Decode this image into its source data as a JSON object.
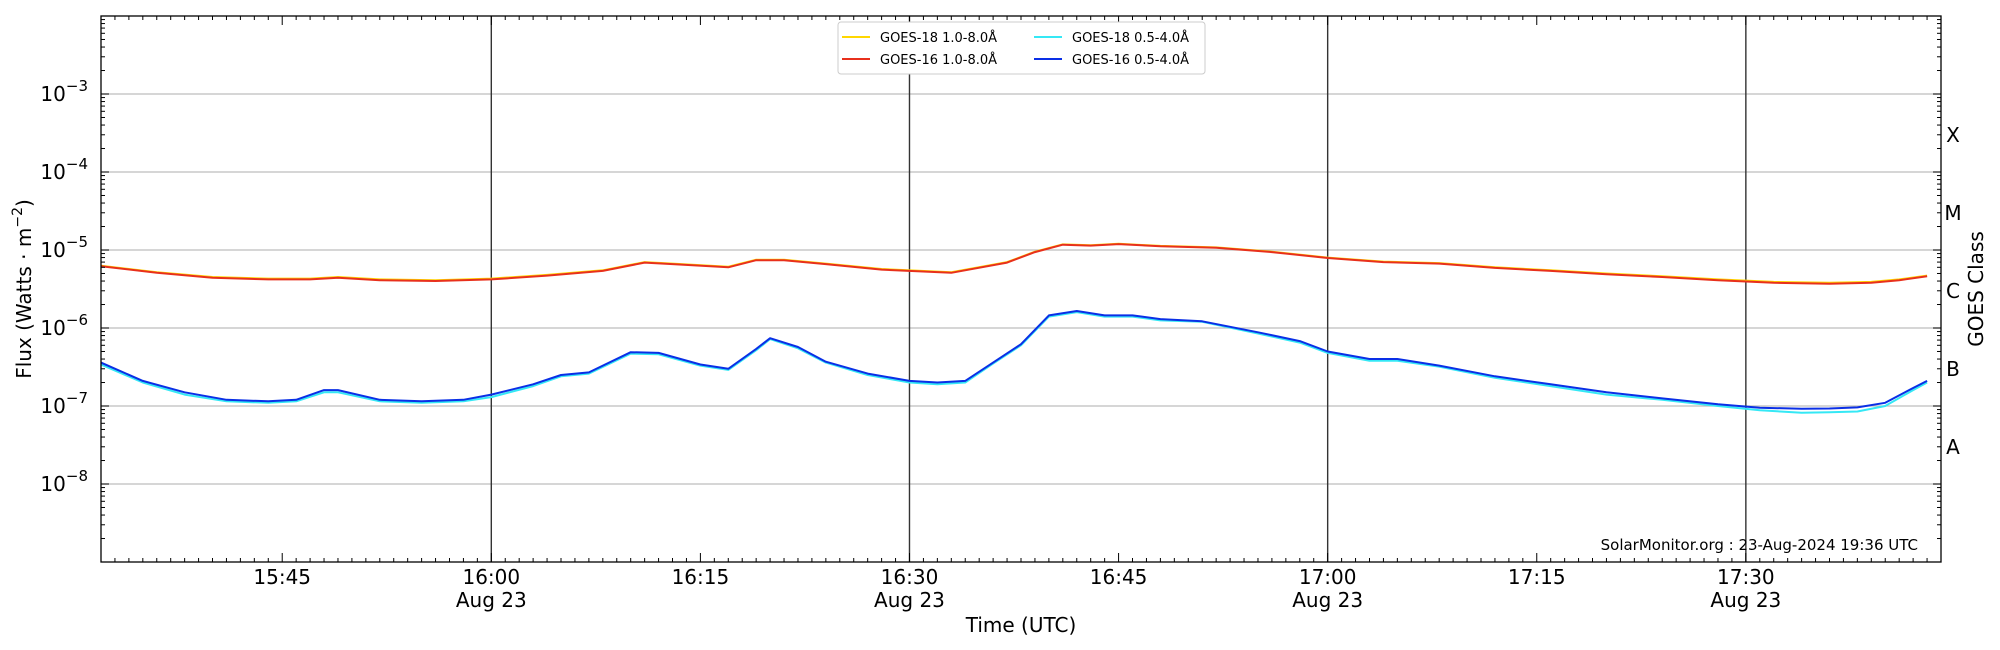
{
  "chart_data": {
    "type": "line",
    "title": "",
    "xlabel": "Time (UTC)",
    "ylabel": "Flux (Watts · m⁻²)",
    "ylabel_parts": {
      "base": "Flux (Watts · m",
      "exponent": "−2",
      "suffix": ")"
    },
    "right_ylabel": "GOES Class",
    "y_scale": "log",
    "ylim": [
      1e-09,
      0.01
    ],
    "xlim": [
      "2024-08-23 15:32",
      "2024-08-23 17:44"
    ],
    "y_ticks": [
      {
        "value": 1e-08,
        "base": "10",
        "exp": "−8"
      },
      {
        "value": 1e-07,
        "base": "10",
        "exp": "−7"
      },
      {
        "value": 1e-06,
        "base": "10",
        "exp": "−6"
      },
      {
        "value": 1e-05,
        "base": "10",
        "exp": "−5"
      },
      {
        "value": 0.0001,
        "base": "10",
        "exp": "−4"
      },
      {
        "value": 0.001,
        "base": "10",
        "exp": "−3"
      }
    ],
    "x_ticks": [
      {
        "time": "15:45",
        "line1": "15:45",
        "line2": ""
      },
      {
        "time": "16:00",
        "line1": "16:00",
        "line2": "Aug 23"
      },
      {
        "time": "16:15",
        "line1": "16:15",
        "line2": ""
      },
      {
        "time": "16:30",
        "line1": "16:30",
        "line2": "Aug 23"
      },
      {
        "time": "16:45",
        "line1": "16:45",
        "line2": ""
      },
      {
        "time": "17:00",
        "line1": "17:00",
        "line2": "Aug 23"
      },
      {
        "time": "17:15",
        "line1": "17:15",
        "line2": ""
      },
      {
        "time": "17:30",
        "line1": "17:30",
        "line2": "Aug 23"
      }
    ],
    "vertical_lines": [
      "16:00",
      "16:30",
      "17:00",
      "17:30"
    ],
    "goes_classes": [
      {
        "label": "A",
        "value": 3e-08
      },
      {
        "label": "B",
        "value": 3e-07
      },
      {
        "label": "C",
        "value": 3e-06
      },
      {
        "label": "M",
        "value": 3e-05
      },
      {
        "label": "X",
        "value": 0.0003
      }
    ],
    "grid": true,
    "legend_position": "top-center",
    "series": [
      {
        "name": "GOES-18 1.0-8.0Å",
        "color": "#ffd700",
        "x": [
          "15:32",
          "15:36",
          "15:40",
          "15:44",
          "15:47",
          "15:49",
          "15:52",
          "15:56",
          "16:00",
          "16:04",
          "16:08",
          "16:11",
          "16:13",
          "16:17",
          "16:19",
          "16:21",
          "16:24",
          "16:28",
          "16:33",
          "16:37",
          "16:39",
          "16:41",
          "16:43",
          "16:45",
          "16:48",
          "16:52",
          "16:56",
          "17:00",
          "17:04",
          "17:08",
          "17:12",
          "17:16",
          "17:20",
          "17:24",
          "17:28",
          "17:32",
          "17:36",
          "17:39",
          "17:41",
          "17:43"
        ],
        "values": [
          6.3e-06,
          5.2e-06,
          4.5e-06,
          4.3e-06,
          4.3e-06,
          4.5e-06,
          4.2e-06,
          4.1e-06,
          4.3e-06,
          4.8e-06,
          5.5e-06,
          7e-06,
          6.7e-06,
          6.1e-06,
          7.5e-06,
          7.5e-06,
          6.7e-06,
          5.7e-06,
          5.2e-06,
          7e-06,
          9.5e-06,
          1.18e-05,
          1.15e-05,
          1.2e-05,
          1.13e-05,
          1.08e-05,
          9.5e-06,
          8e-06,
          7.1e-06,
          6.8e-06,
          6e-06,
          5.5e-06,
          5e-06,
          4.6e-06,
          4.2e-06,
          3.9e-06,
          3.8e-06,
          3.9e-06,
          4.2e-06,
          4.7e-06
        ]
      },
      {
        "name": "GOES-16 1.0-8.0Å",
        "color": "#e8301c",
        "x": [
          "15:32",
          "15:36",
          "15:40",
          "15:44",
          "15:47",
          "15:49",
          "15:52",
          "15:56",
          "16:00",
          "16:04",
          "16:08",
          "16:11",
          "16:13",
          "16:17",
          "16:19",
          "16:21",
          "16:24",
          "16:28",
          "16:33",
          "16:37",
          "16:39",
          "16:41",
          "16:43",
          "16:45",
          "16:48",
          "16:52",
          "16:56",
          "17:00",
          "17:04",
          "17:08",
          "17:12",
          "17:16",
          "17:20",
          "17:24",
          "17:28",
          "17:32",
          "17:36",
          "17:39",
          "17:41",
          "17:43"
        ],
        "values": [
          6.2e-06,
          5.1e-06,
          4.4e-06,
          4.2e-06,
          4.2e-06,
          4.4e-06,
          4.1e-06,
          4e-06,
          4.2e-06,
          4.7e-06,
          5.4e-06,
          6.9e-06,
          6.6e-06,
          6e-06,
          7.4e-06,
          7.4e-06,
          6.6e-06,
          5.6e-06,
          5.1e-06,
          6.9e-06,
          9.4e-06,
          1.17e-05,
          1.14e-05,
          1.19e-05,
          1.12e-05,
          1.07e-05,
          9.4e-06,
          7.9e-06,
          7e-06,
          6.7e-06,
          5.9e-06,
          5.4e-06,
          4.9e-06,
          4.5e-06,
          4.1e-06,
          3.8e-06,
          3.7e-06,
          3.8e-06,
          4.1e-06,
          4.6e-06
        ]
      },
      {
        "name": "GOES-18 0.5-4.0Å",
        "color": "#35e8f5",
        "x": [
          "15:32",
          "15:35",
          "15:38",
          "15:41",
          "15:44",
          "15:46",
          "15:48",
          "15:49",
          "15:52",
          "15:55",
          "15:58",
          "16:00",
          "16:03",
          "16:05",
          "16:07",
          "16:10",
          "16:12",
          "16:15",
          "16:17",
          "16:19",
          "16:20",
          "16:22",
          "16:24",
          "16:27",
          "16:30",
          "16:32",
          "16:34",
          "16:36",
          "16:38",
          "16:40",
          "16:42",
          "16:44",
          "16:46",
          "16:48",
          "16:51",
          "16:55",
          "16:58",
          "17:00",
          "17:03",
          "17:05",
          "17:08",
          "17:12",
          "17:16",
          "17:20",
          "17:24",
          "17:28",
          "17:31",
          "17:34",
          "17:36",
          "17:38",
          "17:40",
          "17:42",
          "17:43"
        ],
        "values": [
          3.4e-07,
          2e-07,
          1.4e-07,
          1.15e-07,
          1.1e-07,
          1.15e-07,
          1.5e-07,
          1.5e-07,
          1.15e-07,
          1.1e-07,
          1.15e-07,
          1.3e-07,
          1.8e-07,
          2.4e-07,
          2.6e-07,
          4.7e-07,
          4.6e-07,
          3.3e-07,
          2.9e-07,
          5.2e-07,
          7.2e-07,
          5.5e-07,
          3.6e-07,
          2.5e-07,
          2e-07,
          1.9e-07,
          2e-07,
          3.5e-07,
          6e-07,
          1.4e-06,
          1.6e-06,
          1.4e-06,
          1.4e-06,
          1.25e-06,
          1.2e-06,
          8.5e-07,
          6.5e-07,
          4.8e-07,
          3.8e-07,
          3.8e-07,
          3.2e-07,
          2.3e-07,
          1.8e-07,
          1.4e-07,
          1.2e-07,
          1e-07,
          8.8e-08,
          8.2e-08,
          8.3e-08,
          8.5e-08,
          1e-07,
          1.6e-07,
          2e-07
        ]
      },
      {
        "name": "GOES-16 0.5-4.0Å",
        "color": "#0a2fe6",
        "x": [
          "15:32",
          "15:35",
          "15:38",
          "15:41",
          "15:44",
          "15:46",
          "15:48",
          "15:49",
          "15:52",
          "15:55",
          "15:58",
          "16:00",
          "16:03",
          "16:05",
          "16:07",
          "16:10",
          "16:12",
          "16:15",
          "16:17",
          "16:19",
          "16:20",
          "16:22",
          "16:24",
          "16:27",
          "16:30",
          "16:32",
          "16:34",
          "16:36",
          "16:38",
          "16:40",
          "16:42",
          "16:44",
          "16:46",
          "16:48",
          "16:51",
          "16:55",
          "16:58",
          "17:00",
          "17:03",
          "17:05",
          "17:08",
          "17:12",
          "17:16",
          "17:20",
          "17:24",
          "17:28",
          "17:31",
          "17:34",
          "17:36",
          "17:38",
          "17:40",
          "17:42",
          "17:43"
        ],
        "values": [
          3.6e-07,
          2.1e-07,
          1.5e-07,
          1.2e-07,
          1.15e-07,
          1.2e-07,
          1.6e-07,
          1.6e-07,
          1.2e-07,
          1.15e-07,
          1.2e-07,
          1.4e-07,
          1.9e-07,
          2.5e-07,
          2.7e-07,
          4.9e-07,
          4.8e-07,
          3.4e-07,
          3e-07,
          5.4e-07,
          7.4e-07,
          5.7e-07,
          3.7e-07,
          2.6e-07,
          2.1e-07,
          2e-07,
          2.1e-07,
          3.6e-07,
          6.2e-07,
          1.45e-06,
          1.65e-06,
          1.45e-06,
          1.45e-06,
          1.3e-06,
          1.22e-06,
          8.8e-07,
          6.8e-07,
          5e-07,
          4e-07,
          4e-07,
          3.3e-07,
          2.4e-07,
          1.9e-07,
          1.5e-07,
          1.25e-07,
          1.05e-07,
          9.5e-08,
          9.2e-08,
          9.3e-08,
          9.6e-08,
          1.1e-07,
          1.7e-07,
          2.1e-07
        ]
      }
    ],
    "credit": "SolarMonitor.org : 23-Aug-2024 19:36 UTC"
  }
}
